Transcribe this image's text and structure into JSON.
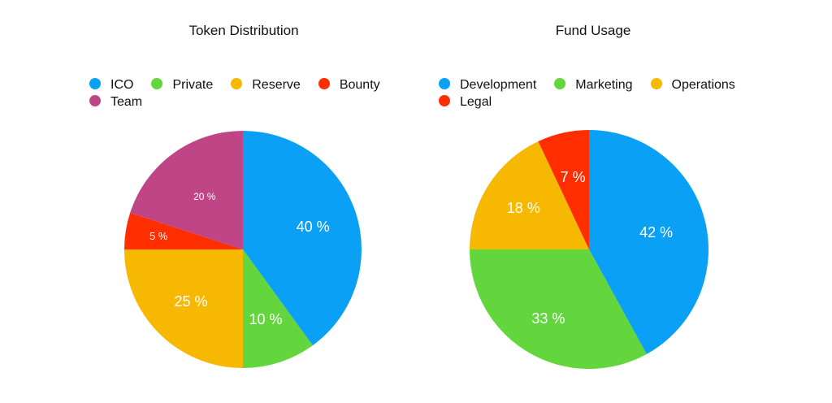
{
  "chart_data": [
    {
      "type": "pie",
      "title": "Token Distribution",
      "legend_position": "top",
      "legend_rows": [
        [
          "ICO",
          "Private",
          "Reserve",
          "Bounty"
        ],
        [
          "Team"
        ]
      ],
      "slices": [
        {
          "name": "ICO",
          "value": 40,
          "label": "40 %",
          "color": "#0aa0f5"
        },
        {
          "name": "Private",
          "value": 10,
          "label": "10 %",
          "color": "#62d63c"
        },
        {
          "name": "Reserve",
          "value": 25,
          "label": "25 %",
          "color": "#f6b800"
        },
        {
          "name": "Bounty",
          "value": 5,
          "label": "5 %",
          "color": "#fe2e00"
        },
        {
          "name": "Team",
          "value": 20,
          "label": "20 %",
          "color": "#bf4586"
        }
      ]
    },
    {
      "type": "pie",
      "title": "Fund Usage",
      "legend_position": "top",
      "legend_rows": [
        [
          "Development",
          "Marketing",
          "Operations"
        ],
        [
          "Legal"
        ]
      ],
      "slices": [
        {
          "name": "Development",
          "value": 42,
          "label": "42 %",
          "color": "#0aa0f5"
        },
        {
          "name": "Marketing",
          "value": 33,
          "label": "33 %",
          "color": "#62d63c"
        },
        {
          "name": "Operations",
          "value": 18,
          "label": "18 %",
          "color": "#f6b800"
        },
        {
          "name": "Legal",
          "value": 7,
          "label": "7 %",
          "color": "#fe2e00"
        }
      ]
    }
  ]
}
